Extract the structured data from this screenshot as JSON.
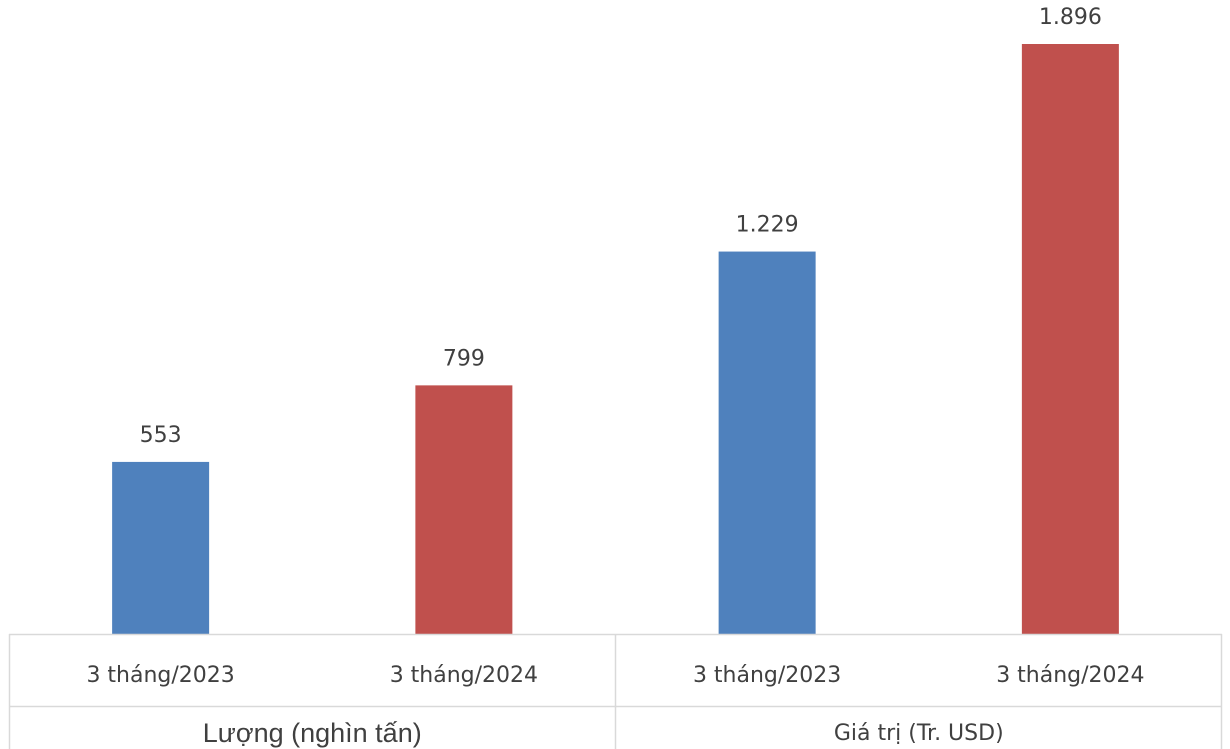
{
  "chart_data": {
    "type": "bar",
    "groups": [
      {
        "label": "Lượng (nghìn tấn)",
        "categories": [
          "3 tháng/2023",
          "3 tháng/2024"
        ],
        "values": [
          553,
          799
        ],
        "value_labels": [
          "553",
          "799"
        ]
      },
      {
        "label": "Giá trị (Tr. USD)",
        "categories": [
          "3 tháng/2023",
          "3 tháng/2024"
        ],
        "values": [
          1229,
          1896
        ],
        "value_labels": [
          "1.229",
          "1.896"
        ]
      }
    ],
    "category_colors": [
      "#4f81bd",
      "#c0504d"
    ],
    "ylim": [
      0,
      1896
    ],
    "grid": false,
    "legend": "none",
    "title": "",
    "xlabel": "",
    "ylabel": ""
  }
}
